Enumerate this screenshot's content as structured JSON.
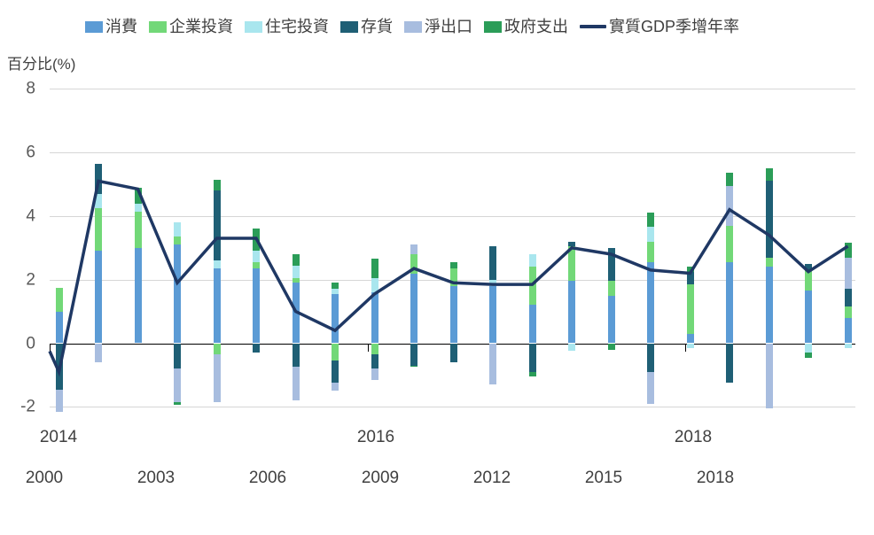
{
  "page": {
    "background": "#ffffff"
  },
  "axis": {
    "y_title": "百分比(%)",
    "y_ticks": [
      "8",
      "6",
      "4",
      "2",
      "0",
      "-2"
    ],
    "x_row1": [
      "2014",
      "2016",
      "2018"
    ],
    "x_row2": [
      "2000",
      "2003",
      "2006",
      "2009",
      "2012",
      "2015",
      "2018"
    ]
  },
  "legend": {
    "items": [
      {
        "label": "消費",
        "color": "#5B9BD5",
        "type": "box",
        "key": "consumption"
      },
      {
        "label": "企業投資",
        "color": "#72D878",
        "type": "box",
        "key": "business-investment"
      },
      {
        "label": "住宅投資",
        "color": "#A9E6EE",
        "type": "box",
        "key": "residential-investment"
      },
      {
        "label": "存貨",
        "color": "#1F5F75",
        "type": "box",
        "key": "inventory"
      },
      {
        "label": "淨出口",
        "color": "#A8BDDF",
        "type": "box",
        "key": "net-exports"
      },
      {
        "label": "政府支出",
        "color": "#2B9D58",
        "type": "box",
        "key": "government-spending"
      },
      {
        "label": "實質GDP季增年率",
        "color": "#1F3864",
        "type": "line",
        "key": "real-gdp-yoy-line"
      }
    ]
  },
  "chart_data": {
    "type": "bar",
    "subtype": "stacked-bars-with-line-overlay",
    "title": "",
    "xlabel": "",
    "ylabel": "百分比(%)",
    "ylim": [
      -2,
      8
    ],
    "gridline_values": [
      8,
      6,
      4,
      2,
      0,
      -2
    ],
    "grid": "horizontal-only",
    "legend_position": "top",
    "x_axis_row1_ticks": [
      "2014",
      "2016",
      "2018"
    ],
    "x_axis_row2_ticks": [
      "2000",
      "2003",
      "2006",
      "2009",
      "2012",
      "2015",
      "2018"
    ],
    "period_index": [
      1,
      2,
      3,
      4,
      5,
      6,
      7,
      8,
      9,
      10,
      11,
      12,
      13,
      14,
      15,
      16,
      17,
      18,
      19,
      20,
      21
    ],
    "unit": "percentage points",
    "series": [
      {
        "name": "消費",
        "color": "#5B9BD5",
        "values": [
          1.0,
          2.9,
          3.0,
          3.1,
          2.35,
          2.35,
          1.9,
          1.55,
          1.6,
          2.2,
          1.8,
          1.8,
          1.2,
          1.95,
          1.5,
          2.55,
          0.3,
          2.55,
          2.4,
          1.65,
          0.8
        ]
      },
      {
        "name": "企業投資",
        "color": "#72D878",
        "values": [
          0.75,
          1.35,
          1.15,
          0.25,
          -0.35,
          0.2,
          0.15,
          -0.55,
          -0.35,
          0.6,
          0.55,
          0,
          1.2,
          1.1,
          0.45,
          0.65,
          1.55,
          1.15,
          0.3,
          0.65,
          0.35
        ]
      },
      {
        "name": "住宅投資",
        "color": "#A9E6EE",
        "values": [
          0,
          0.45,
          0.25,
          0.45,
          0.25,
          0.35,
          0.4,
          0.15,
          0.45,
          0,
          0,
          0.2,
          0.4,
          -0.25,
          0,
          0.45,
          -0.15,
          0,
          0,
          -0.3,
          -0.15
        ]
      },
      {
        "name": "存貨",
        "color": "#1F5F75",
        "values": [
          -1.45,
          0.95,
          0,
          -0.8,
          2.2,
          -0.3,
          -0.75,
          -0.7,
          -0.45,
          -0.7,
          -0.6,
          1.05,
          -0.9,
          0.15,
          1.05,
          -0.9,
          0.4,
          -1.25,
          2.4,
          0.2,
          0.55
        ]
      },
      {
        "name": "淨出口",
        "color": "#A8BDDF",
        "values": [
          -0.7,
          -0.6,
          0,
          -1.05,
          -1.5,
          0,
          -1.05,
          -0.25,
          -0.35,
          0.3,
          0,
          -1.3,
          0,
          0,
          0,
          -1.0,
          0,
          1.25,
          -2.05,
          0,
          1.0
        ]
      },
      {
        "name": "政府支出",
        "color": "#2B9D58",
        "values": [
          0,
          0,
          0.5,
          -0.1,
          0.35,
          0.7,
          0.35,
          0.2,
          0.6,
          -0.05,
          0.2,
          0,
          -0.15,
          0,
          -0.2,
          0.45,
          0.15,
          0.4,
          0.4,
          -0.15,
          0.45
        ]
      }
    ],
    "line_series": {
      "name": "實質GDP季增年率",
      "color": "#1F3864",
      "values": [
        -0.9,
        5.1,
        4.85,
        1.9,
        3.3,
        3.3,
        1.0,
        0.4,
        1.55,
        2.35,
        1.9,
        1.85,
        1.85,
        3.0,
        2.8,
        2.3,
        2.2,
        4.2,
        3.4,
        2.25,
        3.05
      ]
    }
  }
}
